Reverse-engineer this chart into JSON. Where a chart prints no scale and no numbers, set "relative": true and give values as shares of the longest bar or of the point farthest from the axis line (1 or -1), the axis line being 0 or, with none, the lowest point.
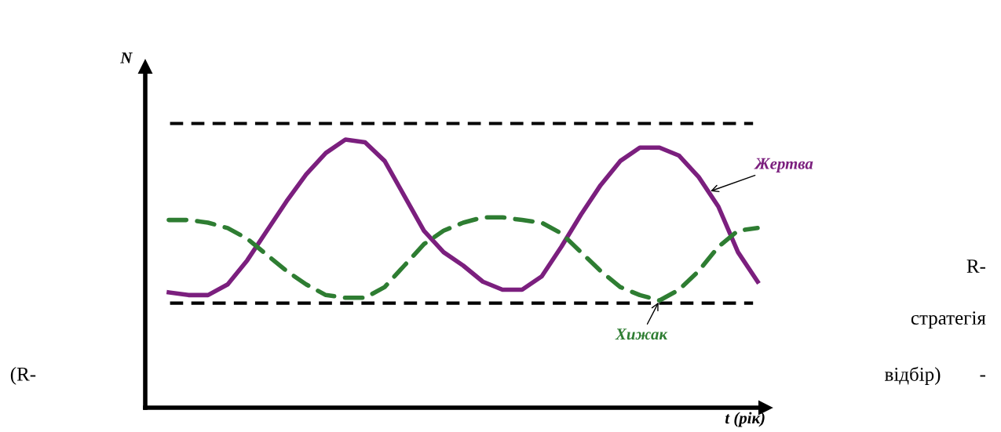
{
  "chart_data": {
    "type": "line",
    "relative": true,
    "xlabel": "t (рік)",
    "ylabel": "N",
    "categories": [
      null,
      null,
      null,
      null,
      null,
      null,
      null,
      null,
      null,
      null,
      null,
      null,
      null,
      null,
      null,
      null,
      null,
      null,
      null,
      null,
      null,
      null,
      null,
      null,
      null,
      null,
      null,
      null,
      null,
      null,
      null
    ],
    "series": [
      {
        "name": "Жертва",
        "color": "#7b1f7e",
        "line_style": "solid",
        "values": [
          0.43,
          0.42,
          0.42,
          0.46,
          0.55,
          0.66,
          0.77,
          0.87,
          0.95,
          1.0,
          0.99,
          0.92,
          0.79,
          0.66,
          0.58,
          0.53,
          0.47,
          0.44,
          0.44,
          0.49,
          0.6,
          0.72,
          0.83,
          0.92,
          0.97,
          0.97,
          0.94,
          0.86,
          0.75,
          0.58,
          0.47
        ]
      },
      {
        "name": "Хижак",
        "color": "#2e7d32",
        "line_style": "dashed",
        "values": [
          0.7,
          0.7,
          0.69,
          0.67,
          0.63,
          0.57,
          0.51,
          0.46,
          0.42,
          0.41,
          0.41,
          0.45,
          0.53,
          0.61,
          0.66,
          0.69,
          0.71,
          0.71,
          0.7,
          0.69,
          0.65,
          0.58,
          0.51,
          0.45,
          0.42,
          0.4,
          0.44,
          0.51,
          0.6,
          0.66,
          0.67
        ]
      }
    ],
    "ref_lines": [
      {
        "axis": "y",
        "value": 1.06,
        "color": "#000000",
        "line_style": "dashed"
      },
      {
        "axis": "y",
        "value": 0.39,
        "color": "#000000",
        "line_style": "dashed"
      }
    ],
    "annotations": [
      "R-",
      "стратегія",
      "(R-",
      "відбір)",
      "-"
    ]
  }
}
